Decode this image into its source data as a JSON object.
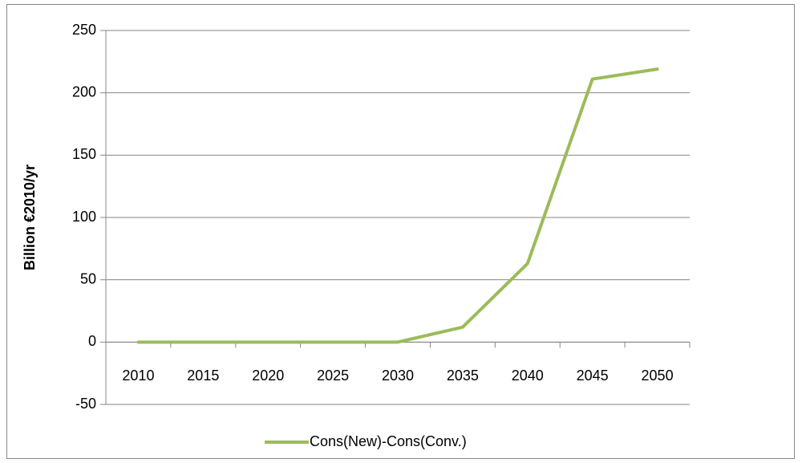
{
  "chart_data": {
    "type": "line",
    "y_label": "Billion €2010/yr",
    "categories": [
      "2010",
      "2015",
      "2020",
      "2025",
      "2030",
      "2035",
      "2040",
      "2045",
      "2050"
    ],
    "series": [
      {
        "name": "Cons(New)-Cons(Conv.)",
        "color": "#9bbb59",
        "values": [
          0,
          0,
          0,
          0,
          0,
          12,
          63,
          211,
          219
        ]
      }
    ],
    "ylim": [
      -50,
      250
    ],
    "yticks": [
      -50,
      0,
      50,
      100,
      150,
      200,
      250
    ],
    "grid": true,
    "legend": "bottom"
  }
}
